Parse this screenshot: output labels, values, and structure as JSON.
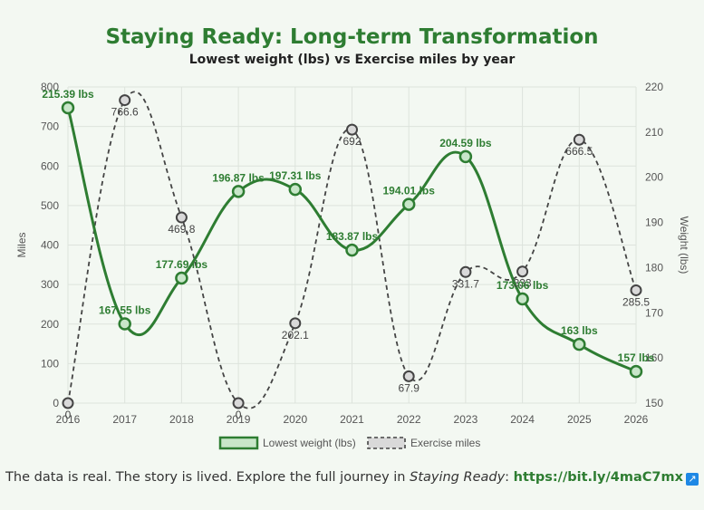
{
  "title": "Staying Ready: Long-term Transformation",
  "subtitle": "Lowest weight (lbs) vs Exercise miles by year",
  "footer": {
    "text_before": "The data is real. The story is lived. Explore the full journey in ",
    "book_title": "Staying Ready",
    "text_colon": ": ",
    "link_text": "https://bit.ly/4maC7mx",
    "ext_glyph": "↗"
  },
  "chart_data": {
    "type": "line",
    "x": [
      "2016",
      "2017",
      "2018",
      "2019",
      "2020",
      "2021",
      "2022",
      "2023",
      "2024",
      "2025",
      "2026"
    ],
    "series": [
      {
        "name": "Lowest weight (lbs)",
        "axis": "right",
        "values": [
          215.39,
          167.55,
          177.69,
          196.87,
          197.31,
          183.87,
          194.01,
          204.59,
          173.06,
          163,
          157
        ],
        "labels": [
          "215.39 lbs",
          "167.55 lbs",
          "177.69 lbs",
          "196.87 lbs",
          "197.31 lbs",
          "183.87 lbs",
          "194.01 lbs",
          "204.59 lbs",
          "173.06 lbs",
          "163 lbs",
          "157 lbs"
        ],
        "color": "#2e7d32",
        "style": "solid"
      },
      {
        "name": "Exercise miles",
        "axis": "left",
        "values": [
          0,
          766.6,
          469.8,
          0,
          202.1,
          692,
          67.9,
          331.7,
          333,
          666.5,
          285.5
        ],
        "labels": [
          "0",
          "766.6",
          "469.8",
          "0",
          "202.1",
          "692",
          "67.9",
          "331.7",
          "333",
          "666.5",
          "285.5"
        ],
        "color": "#444444",
        "style": "dashed"
      }
    ],
    "ylabel_left": "Miles",
    "ylabel_right": "Weight (lbs)",
    "ylim_left": [
      0,
      800
    ],
    "ylim_right": [
      150,
      220
    ],
    "yticks_left": [
      0,
      100,
      200,
      300,
      400,
      500,
      600,
      700,
      800
    ],
    "yticks_right": [
      150,
      160,
      170,
      180,
      190,
      200,
      210,
      220
    ],
    "grid": true,
    "legend": "bottom"
  }
}
